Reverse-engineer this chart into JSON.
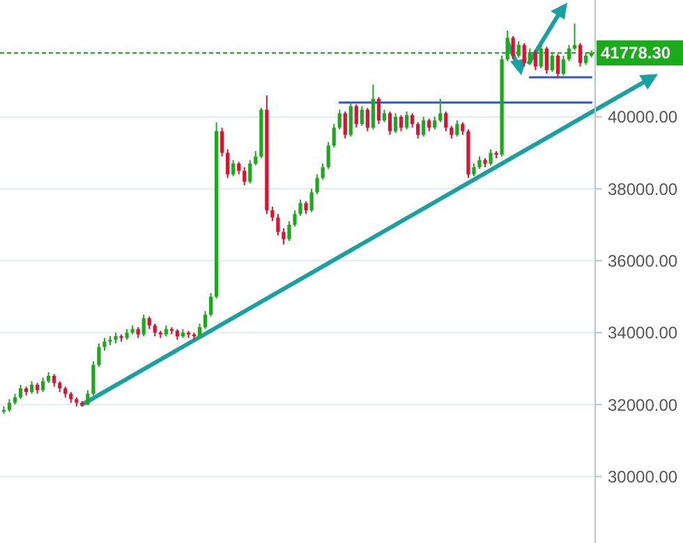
{
  "chart_data": {
    "type": "candlestick",
    "categories": [
      null,
      null,
      null,
      null,
      null,
      null,
      null,
      null,
      null,
      null,
      null,
      null,
      null,
      null,
      null,
      null,
      null,
      null,
      null,
      null,
      null,
      null,
      null,
      null,
      null,
      null,
      null,
      null,
      null,
      null,
      null,
      null,
      null,
      null,
      null,
      null,
      null,
      null,
      null,
      null,
      null,
      null,
      null,
      null,
      null,
      null,
      null,
      null,
      null,
      null,
      null,
      null,
      null,
      null,
      null,
      null,
      null,
      null,
      null,
      null,
      null,
      null,
      null,
      null,
      null,
      null,
      null,
      null,
      null,
      null,
      null,
      null,
      null,
      null,
      null,
      null,
      null,
      null,
      null,
      null,
      null,
      null,
      null,
      null,
      null,
      null,
      null,
      null,
      null,
      null,
      null,
      null,
      null,
      null,
      null,
      null,
      null,
      null,
      null,
      null,
      null,
      null,
      null,
      null,
      null,
      null
    ],
    "ohlc": [
      [
        31800,
        31950,
        31750,
        31850
      ],
      [
        31850,
        32150,
        31800,
        32050
      ],
      [
        32050,
        32300,
        32000,
        32200
      ],
      [
        32200,
        32550,
        32150,
        32450
      ],
      [
        32450,
        32500,
        32250,
        32350
      ],
      [
        32350,
        32650,
        32300,
        32550
      ],
      [
        32550,
        32600,
        32300,
        32400
      ],
      [
        32400,
        32750,
        32350,
        32650
      ],
      [
        32650,
        32900,
        32600,
        32800
      ],
      [
        32800,
        32850,
        32500,
        32600
      ],
      [
        32600,
        32650,
        32350,
        32450
      ],
      [
        32450,
        32500,
        32200,
        32300
      ],
      [
        32300,
        32350,
        32050,
        32150
      ],
      [
        32150,
        32200,
        31950,
        32050
      ],
      [
        32050,
        32100,
        31950,
        32000
      ],
      [
        32000,
        32400,
        31980,
        32300
      ],
      [
        32300,
        33200,
        32250,
        33100
      ],
      [
        33100,
        33700,
        33050,
        33600
      ],
      [
        33600,
        33850,
        33500,
        33750
      ],
      [
        33750,
        33900,
        33650,
        33800
      ],
      [
        33800,
        34000,
        33700,
        33900
      ],
      [
        33900,
        33950,
        33750,
        33850
      ],
      [
        33850,
        34100,
        33800,
        34000
      ],
      [
        34000,
        34200,
        33950,
        34100
      ],
      [
        34100,
        34150,
        33850,
        33950
      ],
      [
        33950,
        34500,
        33900,
        34400
      ],
      [
        34400,
        34450,
        34100,
        34200
      ],
      [
        34200,
        34250,
        33900,
        34000
      ],
      [
        34000,
        34050,
        33850,
        33950
      ],
      [
        33950,
        34200,
        33900,
        34100
      ],
      [
        34100,
        34150,
        33950,
        34050
      ],
      [
        34050,
        34100,
        33800,
        33900
      ],
      [
        33900,
        34100,
        33850,
        34000
      ],
      [
        34000,
        34050,
        33850,
        33950
      ],
      [
        33950,
        34000,
        33800,
        33900
      ],
      [
        33900,
        34250,
        33850,
        34150
      ],
      [
        34150,
        34600,
        34100,
        34500
      ],
      [
        34500,
        35100,
        34450,
        35000
      ],
      [
        35000,
        39850,
        34950,
        39600
      ],
      [
        39600,
        39700,
        38900,
        39000
      ],
      [
        39000,
        39100,
        38300,
        38400
      ],
      [
        38400,
        38800,
        38350,
        38700
      ],
      [
        38700,
        38750,
        38400,
        38500
      ],
      [
        38500,
        38600,
        38100,
        38200
      ],
      [
        38200,
        38800,
        38150,
        38700
      ],
      [
        38700,
        39050,
        38650,
        38900
      ],
      [
        38900,
        40250,
        38850,
        40200
      ],
      [
        40200,
        40600,
        37300,
        37400
      ],
      [
        37400,
        37500,
        37100,
        37200
      ],
      [
        37200,
        37300,
        36700,
        36800
      ],
      [
        36800,
        36900,
        36450,
        36600
      ],
      [
        36600,
        37100,
        36550,
        37000
      ],
      [
        37000,
        37400,
        36950,
        37300
      ],
      [
        37300,
        37700,
        37250,
        37600
      ],
      [
        37600,
        37650,
        37300,
        37400
      ],
      [
        37400,
        38000,
        37350,
        37900
      ],
      [
        37900,
        38400,
        37850,
        38300
      ],
      [
        38300,
        38700,
        38250,
        38600
      ],
      [
        38600,
        39300,
        38550,
        39200
      ],
      [
        39200,
        39800,
        39150,
        39700
      ],
      [
        39700,
        40200,
        39650,
        40100
      ],
      [
        40100,
        40150,
        39400,
        39500
      ],
      [
        39500,
        40400,
        39450,
        40300
      ],
      [
        40300,
        40350,
        39700,
        39800
      ],
      [
        39800,
        40300,
        39750,
        40200
      ],
      [
        40200,
        40250,
        39600,
        39700
      ],
      [
        39700,
        40900,
        39650,
        40500
      ],
      [
        40500,
        40550,
        39800,
        39900
      ],
      [
        39900,
        40200,
        39850,
        40100
      ],
      [
        40100,
        40150,
        39500,
        39600
      ],
      [
        39600,
        40100,
        39550,
        40000
      ],
      [
        40000,
        40050,
        39600,
        39700
      ],
      [
        39700,
        40150,
        39650,
        40050
      ],
      [
        40050,
        40100,
        39700,
        39800
      ],
      [
        39800,
        39850,
        39400,
        39500
      ],
      [
        39500,
        40000,
        39450,
        39900
      ],
      [
        39900,
        39950,
        39600,
        39700
      ],
      [
        39700,
        40000,
        39650,
        39900
      ],
      [
        39900,
        40500,
        39850,
        40100
      ],
      [
        40100,
        40150,
        39600,
        39700
      ],
      [
        39700,
        39750,
        39400,
        39500
      ],
      [
        39500,
        39900,
        39450,
        39800
      ],
      [
        39800,
        39850,
        39500,
        39600
      ],
      [
        39600,
        39650,
        38300,
        38400
      ],
      [
        38400,
        38700,
        38350,
        38600
      ],
      [
        38600,
        38900,
        38550,
        38800
      ],
      [
        38800,
        38850,
        38600,
        38700
      ],
      [
        38700,
        39100,
        38650,
        39000
      ],
      [
        39000,
        39050,
        38850,
        38950
      ],
      [
        38950,
        41700,
        38900,
        41600
      ],
      [
        41600,
        42400,
        41550,
        42200
      ],
      [
        42200,
        42250,
        41600,
        41700
      ],
      [
        41700,
        42100,
        41650,
        42000
      ],
      [
        42000,
        42050,
        41400,
        41500
      ],
      [
        41500,
        41900,
        41450,
        41800
      ],
      [
        41800,
        41850,
        41300,
        41400
      ],
      [
        41400,
        42000,
        41350,
        41900
      ],
      [
        41900,
        41950,
        41200,
        41300
      ],
      [
        41300,
        41800,
        41250,
        41700
      ],
      [
        41700,
        41750,
        41100,
        41200
      ],
      [
        41200,
        41700,
        41150,
        41600
      ],
      [
        41600,
        42000,
        41550,
        41900
      ],
      [
        41900,
        42600,
        41850,
        42000
      ],
      [
        42000,
        42050,
        41400,
        41500
      ],
      [
        41500,
        41800,
        41450,
        41700
      ],
      [
        41700,
        41850,
        41650,
        41778.3
      ]
    ],
    "colors": [
      "#1aab1a",
      "#1aab1a",
      "#1aab1a",
      "#1aab1a",
      "#e0102f",
      "#1aab1a",
      "#e0102f",
      "#1aab1a",
      "#1aab1a",
      "#e0102f",
      "#e0102f",
      "#e0102f",
      "#e0102f",
      "#e0102f",
      "#e0102f",
      "#1aab1a",
      "#1aab1a",
      "#1aab1a",
      "#1aab1a",
      "#1aab1a",
      "#1aab1a",
      "#e0102f",
      "#1aab1a",
      "#1aab1a",
      "#e0102f",
      "#1aab1a",
      "#e0102f",
      "#e0102f",
      "#e0102f",
      "#1aab1a",
      "#e0102f",
      "#e0102f",
      "#1aab1a",
      "#e0102f",
      "#e0102f",
      "#1aab1a",
      "#1aab1a",
      "#1aab1a",
      "#1aab1a",
      "#e0102f",
      "#e0102f",
      "#1aab1a",
      "#e0102f",
      "#e0102f",
      "#1aab1a",
      "#1aab1a",
      "#1aab1a",
      "#e0102f",
      "#e0102f",
      "#e0102f",
      "#e0102f",
      "#1aab1a",
      "#1aab1a",
      "#1aab1a",
      "#e0102f",
      "#1aab1a",
      "#1aab1a",
      "#1aab1a",
      "#1aab1a",
      "#1aab1a",
      "#1aab1a",
      "#e0102f",
      "#1aab1a",
      "#e0102f",
      "#1aab1a",
      "#e0102f",
      "#1aab1a",
      "#e0102f",
      "#1aab1a",
      "#e0102f",
      "#1aab1a",
      "#e0102f",
      "#1aab1a",
      "#e0102f",
      "#e0102f",
      "#1aab1a",
      "#e0102f",
      "#1aab1a",
      "#1aab1a",
      "#e0102f",
      "#e0102f",
      "#1aab1a",
      "#e0102f",
      "#e0102f",
      "#1aab1a",
      "#1aab1a",
      "#e0102f",
      "#1aab1a",
      "#e0102f",
      "#1aab1a",
      "#1aab1a",
      "#e0102f",
      "#1aab1a",
      "#e0102f",
      "#1aab1a",
      "#e0102f",
      "#1aab1a",
      "#e0102f",
      "#1aab1a",
      "#e0102f",
      "#1aab1a",
      "#1aab1a",
      "#1aab1a",
      "#e0102f",
      "#1aab1a",
      "#1aab1a"
    ],
    "series": [
      {
        "type": "line",
        "color": "#17a2a2",
        "values": [
          null,
          null,
          null,
          null,
          null,
          null,
          null,
          null,
          null,
          null,
          null,
          null,
          null,
          null,
          32000,
          null,
          null,
          null,
          null,
          null,
          null,
          null,
          null,
          null,
          null,
          null,
          null,
          null,
          null,
          null,
          null,
          null,
          null,
          null,
          null,
          null,
          null,
          null,
          null,
          null,
          null,
          null,
          null,
          null,
          null,
          null,
          null,
          null,
          null,
          null,
          null,
          null,
          null,
          null,
          null,
          null,
          null,
          null,
          null,
          null,
          null,
          null,
          null,
          null,
          null,
          null,
          null,
          null,
          null,
          null,
          null,
          null,
          null,
          null,
          null,
          null,
          null,
          null,
          null,
          null,
          null,
          null,
          null,
          null,
          null,
          null,
          null,
          null,
          null,
          null,
          null,
          null,
          null,
          null,
          null,
          null,
          null,
          null,
          null,
          null,
          null,
          null,
          null,
          null,
          null,
          40130
        ]
      },
      {
        "type": "line",
        "color": "#3355cc",
        "values": [
          null,
          null,
          null,
          null,
          null,
          null,
          null,
          null,
          null,
          null,
          null,
          null,
          null,
          null,
          null,
          null,
          null,
          null,
          null,
          null,
          null,
          null,
          null,
          null,
          null,
          null,
          null,
          null,
          null,
          null,
          null,
          null,
          null,
          null,
          null,
          null,
          null,
          null,
          null,
          null,
          null,
          null,
          null,
          null,
          null,
          null,
          null,
          null,
          null,
          null,
          null,
          null,
          null,
          null,
          null,
          null,
          null,
          null,
          null,
          null,
          40400,
          null,
          null,
          null,
          null,
          null,
          null,
          null,
          null,
          null,
          null,
          null,
          null,
          null,
          null,
          null,
          null,
          null,
          null,
          null,
          null,
          null,
          null,
          null,
          null,
          null,
          null,
          null,
          null,
          null,
          null,
          null,
          null,
          null,
          null,
          null,
          null,
          null,
          null,
          null,
          null,
          null,
          null,
          null,
          null,
          40400
        ]
      },
      {
        "type": "line",
        "color": "#3355cc",
        "values": [
          null,
          null,
          null,
          null,
          null,
          null,
          null,
          null,
          null,
          null,
          null,
          null,
          null,
          null,
          null,
          null,
          null,
          null,
          null,
          null,
          null,
          null,
          null,
          null,
          null,
          null,
          null,
          null,
          null,
          null,
          null,
          null,
          null,
          null,
          null,
          null,
          null,
          null,
          null,
          null,
          null,
          null,
          null,
          null,
          null,
          null,
          null,
          null,
          null,
          null,
          null,
          null,
          null,
          null,
          null,
          null,
          null,
          null,
          null,
          null,
          null,
          null,
          null,
          null,
          null,
          null,
          null,
          null,
          null,
          null,
          null,
          null,
          null,
          null,
          null,
          null,
          null,
          null,
          null,
          null,
          null,
          null,
          null,
          null,
          null,
          null,
          null,
          null,
          null,
          null,
          null,
          null,
          null,
          null,
          41100,
          null,
          null,
          null,
          null,
          null,
          null,
          null,
          null,
          null,
          null,
          41100
        ]
      }
    ],
    "ylim": [
      28150,
      43250
    ],
    "yticks": [
      {
        "value": 30000,
        "label": "30000.00"
      },
      {
        "value": 32000,
        "label": "32000.00"
      },
      {
        "value": 34000,
        "label": "34000.00"
      },
      {
        "value": 36000,
        "label": "36000.00"
      },
      {
        "value": 38000,
        "label": "38000.00"
      },
      {
        "value": 40000,
        "label": "40000.00"
      }
    ],
    "ref_lines": [
      {
        "axis": "y",
        "value": 41778.3,
        "label": "41778.30",
        "color": "#1aab1a",
        "line_style": "dashed"
      }
    ],
    "tick_labels": "y",
    "grid": "y"
  }
}
